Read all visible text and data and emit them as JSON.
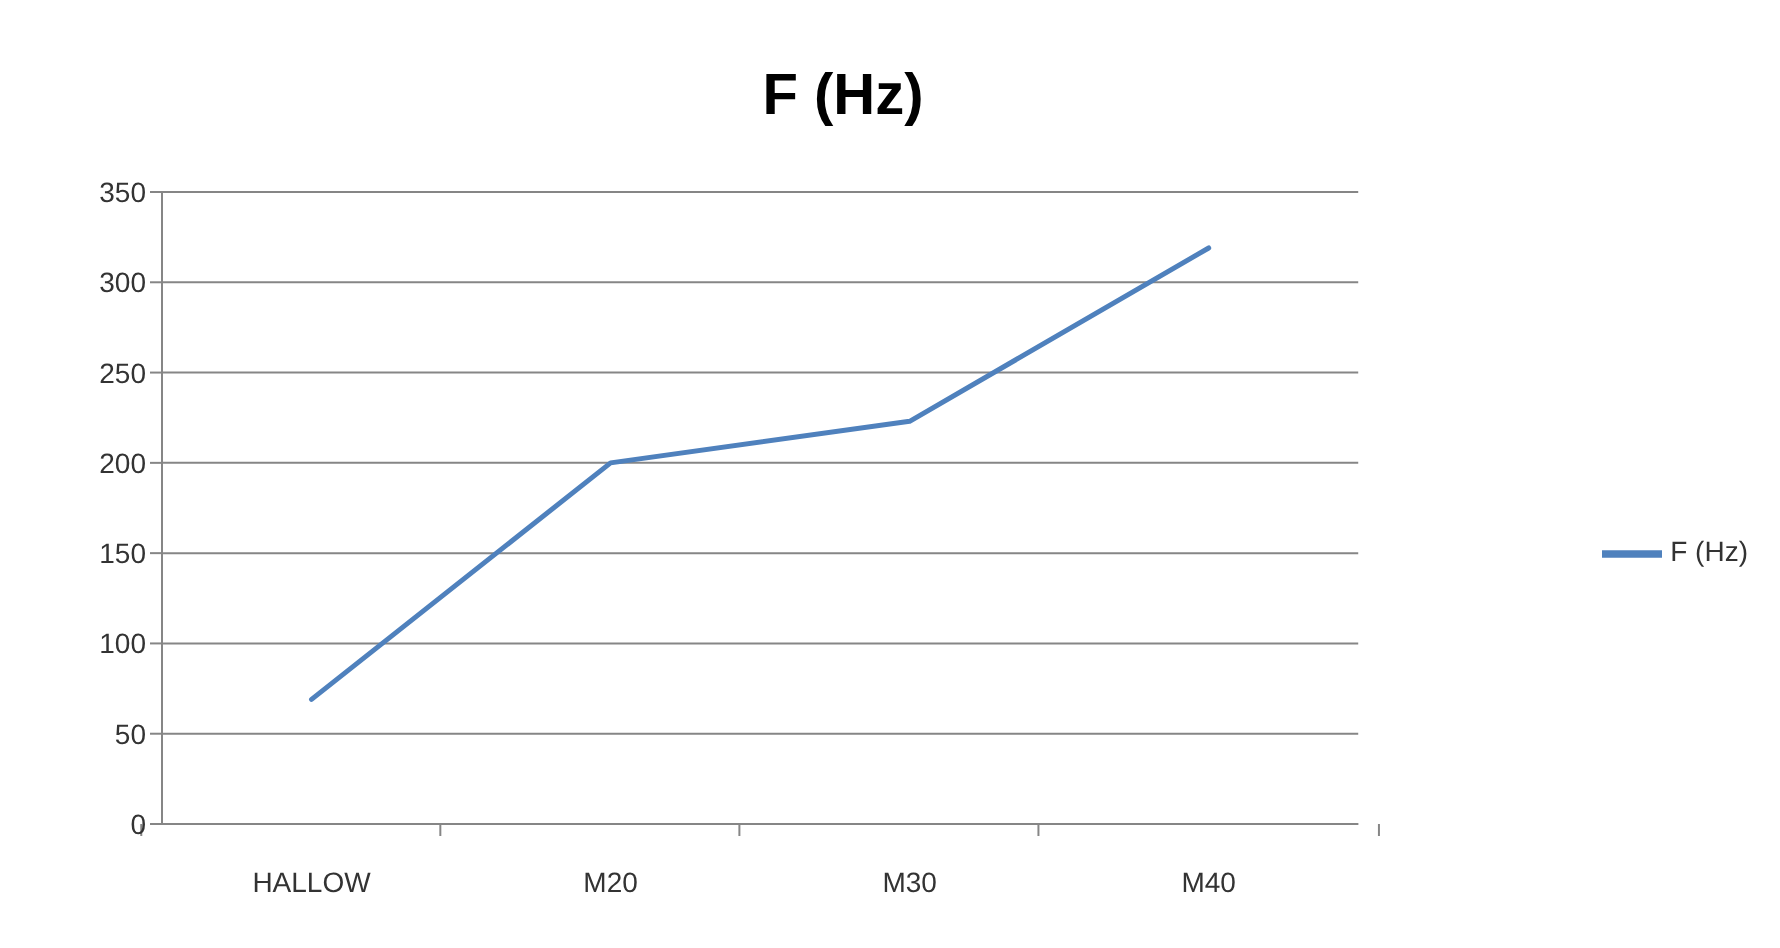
{
  "chart_data": {
    "type": "line",
    "title": "F (Hz)",
    "categories": [
      "HALLOW",
      "M20",
      "M30",
      "M40"
    ],
    "series": [
      {
        "name": "F (Hz)",
        "color": "#4f81bd",
        "values": [
          69,
          200,
          223,
          319
        ]
      }
    ],
    "ylim": [
      0,
      350
    ],
    "yticks": [
      0,
      50,
      100,
      150,
      200,
      250,
      300,
      350
    ],
    "grid": "y",
    "legend": "right",
    "marker": "none",
    "line_style": "solid"
  }
}
